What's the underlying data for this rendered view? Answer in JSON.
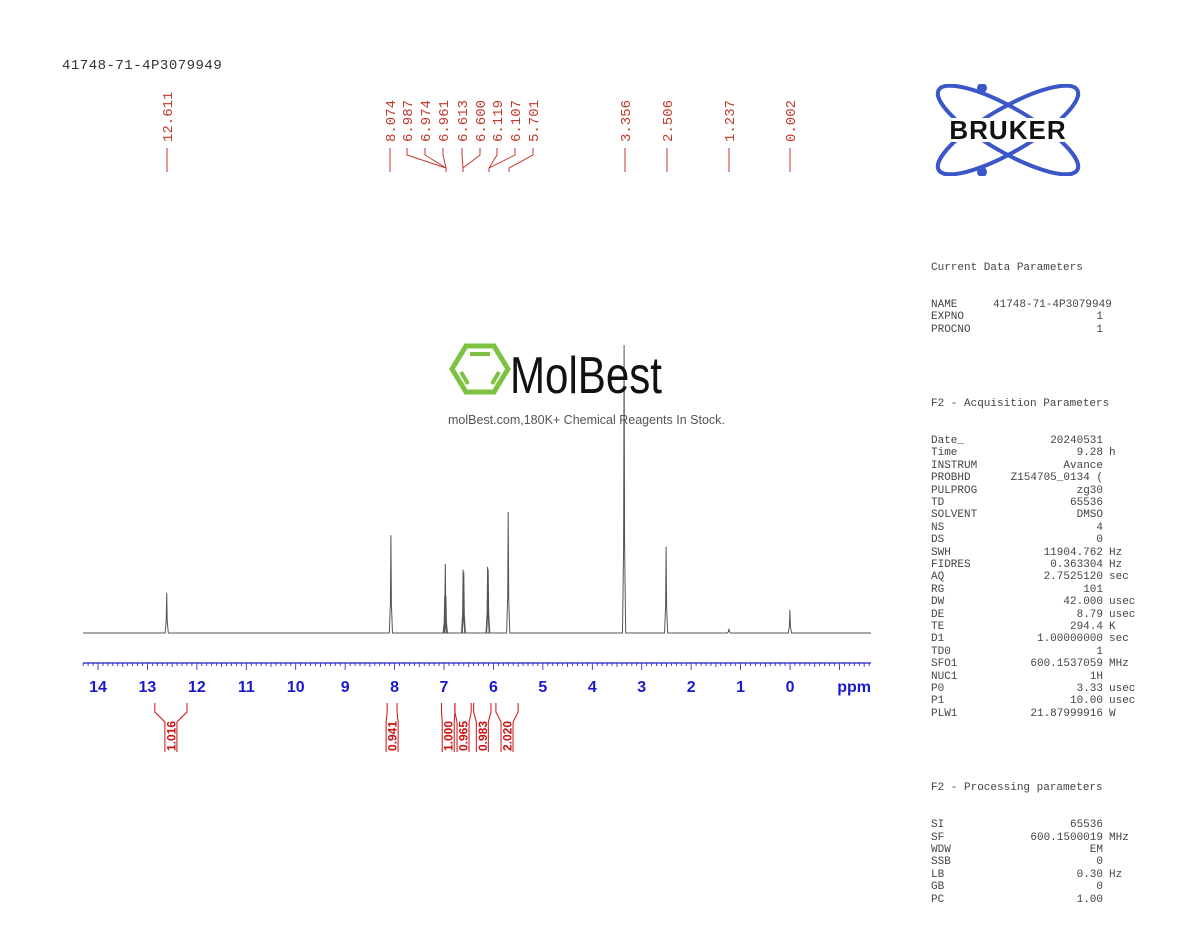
{
  "sample_name": "41748-71-4P3079949",
  "logos": {
    "vendor": "BRUKER",
    "watermark_brand": "MolBest",
    "watermark_tagline": "molBest.com,180K+ Chemical Reagents In Stock."
  },
  "colors": {
    "peak_labels": "#c0392b",
    "axis": "#1a1acc",
    "spectrum": "#555555",
    "integrals": "#cc1111",
    "bruker_blue": "#3a56c8",
    "molbest_green": "#7dc242"
  },
  "chart_data": {
    "type": "line",
    "title": "41748-71-4P3079949",
    "xlabel": "ppm",
    "ylabel": "",
    "xlim": [
      14.3,
      -1.65
    ],
    "x_reversed": true,
    "x_ticks": [
      14,
      13,
      12,
      11,
      10,
      9,
      8,
      7,
      6,
      5,
      4,
      3,
      2,
      1,
      0
    ],
    "grid": false,
    "peak_labels": [
      "12.611",
      "8.074",
      "6.987",
      "6.974",
      "6.961",
      "6.613",
      "6.600",
      "6.119",
      "6.107",
      "5.701",
      "3.356",
      "2.506",
      "1.237",
      "0.002"
    ],
    "peaks": [
      {
        "ppm": 12.611,
        "rel_height": 0.14
      },
      {
        "ppm": 8.074,
        "rel_height": 0.34
      },
      {
        "ppm": 6.987,
        "rel_height": 0.13
      },
      {
        "ppm": 6.974,
        "rel_height": 0.24
      },
      {
        "ppm": 6.961,
        "rel_height": 0.13
      },
      {
        "ppm": 6.613,
        "rel_height": 0.22
      },
      {
        "ppm": 6.6,
        "rel_height": 0.21
      },
      {
        "ppm": 6.119,
        "rel_height": 0.23
      },
      {
        "ppm": 6.107,
        "rel_height": 0.22
      },
      {
        "ppm": 5.701,
        "rel_height": 0.42
      },
      {
        "ppm": 3.356,
        "rel_height": 1.0
      },
      {
        "ppm": 2.506,
        "rel_height": 0.3
      },
      {
        "ppm": 1.237,
        "rel_height": 0.015
      },
      {
        "ppm": 0.002,
        "rel_height": 0.08
      }
    ],
    "integrals": [
      {
        "from": 12.85,
        "to": 12.2,
        "value": "1.016"
      },
      {
        "from": 8.15,
        "to": 7.95,
        "value": "0.941"
      },
      {
        "from": 7.05,
        "to": 6.78,
        "value": "1.000"
      },
      {
        "from": 6.78,
        "to": 6.45,
        "value": "0.965"
      },
      {
        "from": 6.4,
        "to": 6.05,
        "value": "0.983"
      },
      {
        "from": 5.95,
        "to": 5.5,
        "value": "2.020"
      }
    ]
  },
  "parameters": {
    "current": {
      "title": "Current Data Parameters",
      "rows": [
        {
          "k": "NAME",
          "v": "41748-71-4P3079949",
          "u": ""
        },
        {
          "k": "EXPNO",
          "v": "1",
          "u": ""
        },
        {
          "k": "PROCNO",
          "v": "1",
          "u": ""
        }
      ]
    },
    "acquisition": {
      "title": "F2 - Acquisition Parameters",
      "rows": [
        {
          "k": "Date_",
          "v": "20240531",
          "u": ""
        },
        {
          "k": "Time",
          "v": "9.28",
          "u": "h"
        },
        {
          "k": "INSTRUM",
          "v": "Avance",
          "u": ""
        },
        {
          "k": "PROBHD",
          "v": "Z154705_0134 (",
          "u": ""
        },
        {
          "k": "PULPROG",
          "v": "zg30",
          "u": ""
        },
        {
          "k": "TD",
          "v": "65536",
          "u": ""
        },
        {
          "k": "SOLVENT",
          "v": "DMSO",
          "u": ""
        },
        {
          "k": "NS",
          "v": "4",
          "u": ""
        },
        {
          "k": "DS",
          "v": "0",
          "u": ""
        },
        {
          "k": "SWH",
          "v": "11904.762",
          "u": "Hz"
        },
        {
          "k": "FIDRES",
          "v": "0.363304",
          "u": "Hz"
        },
        {
          "k": "AQ",
          "v": "2.7525120",
          "u": "sec"
        },
        {
          "k": "RG",
          "v": "101",
          "u": ""
        },
        {
          "k": "DW",
          "v": "42.000",
          "u": "usec"
        },
        {
          "k": "DE",
          "v": "8.79",
          "u": "usec"
        },
        {
          "k": "TE",
          "v": "294.4",
          "u": "K"
        },
        {
          "k": "D1",
          "v": "1.00000000",
          "u": "sec"
        },
        {
          "k": "TD0",
          "v": "1",
          "u": ""
        },
        {
          "k": "SFO1",
          "v": "600.1537059",
          "u": "MHz"
        },
        {
          "k": "NUC1",
          "v": "1H",
          "u": ""
        },
        {
          "k": "P0",
          "v": "3.33",
          "u": "usec"
        },
        {
          "k": "P1",
          "v": "10.00",
          "u": "usec"
        },
        {
          "k": "PLW1",
          "v": "21.87999916",
          "u": "W"
        }
      ]
    },
    "processing": {
      "title": "F2 - Processing parameters",
      "rows": [
        {
          "k": "SI",
          "v": "65536",
          "u": ""
        },
        {
          "k": "SF",
          "v": "600.1500019",
          "u": "MHz"
        },
        {
          "k": "WDW",
          "v": "EM",
          "u": ""
        },
        {
          "k": "SSB",
          "v": "0",
          "u": ""
        },
        {
          "k": "LB",
          "v": "0.30",
          "u": "Hz"
        },
        {
          "k": "GB",
          "v": "0",
          "u": ""
        },
        {
          "k": "PC",
          "v": "1.00",
          "u": ""
        }
      ]
    }
  }
}
